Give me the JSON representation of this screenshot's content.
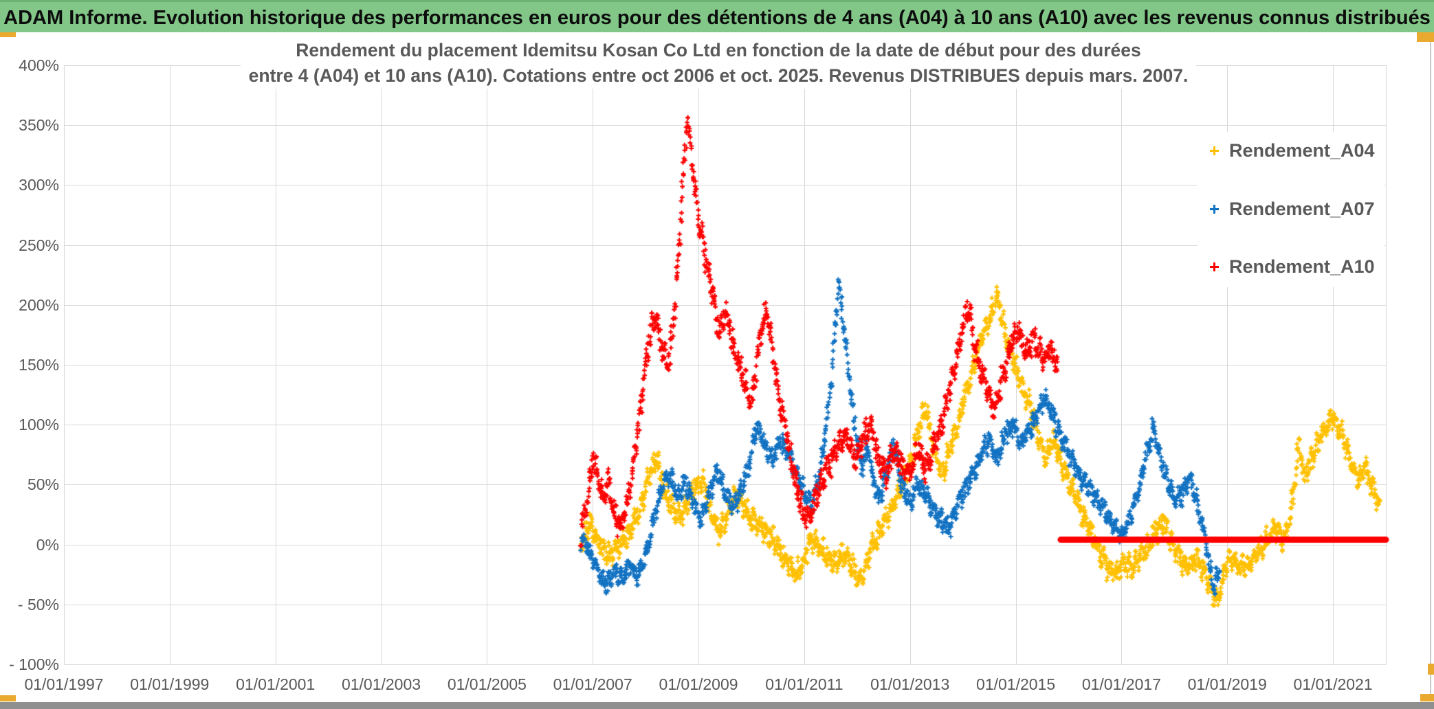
{
  "header": {
    "title": "ADAM Informe. Evolution historique des performances en euros pour des détentions de 4 ans (A04) à 10 ans (A10) avec les revenus connus distribués"
  },
  "chart_title": {
    "line1": "Rendement du placement Idemitsu Kosan Co Ltd en fonction de la date de début pour des durées",
    "line2": "entre 4 (A04) et 10 ans (A10). Cotations entre oct 2006 et oct. 2025. Revenus DISTRIBUES depuis mars. 2007."
  },
  "legend": [
    {
      "label": "Rendement_A04",
      "color": "#FFC000"
    },
    {
      "label": "Rendement_A07",
      "color": "#1272C2"
    },
    {
      "label": "Rendement_A10",
      "color": "#FF0000"
    }
  ],
  "colors": {
    "header_green": "#82C788",
    "accent_gold": "#EAAA30",
    "grid": "#D9D9D9",
    "axis_text": "#595959",
    "series_a04": "#FFC000",
    "series_a07": "#1272C2",
    "series_a10": "#FF0000"
  },
  "chart_data": {
    "type": "scatter",
    "marker": "plus",
    "grid": "on",
    "legend_position": "right-inside",
    "x_axis": {
      "ticks": [
        "01/01/1997",
        "01/01/1999",
        "01/01/2001",
        "01/01/2003",
        "01/01/2005",
        "01/01/2007",
        "01/01/2009",
        "01/01/2011",
        "01/01/2013",
        "01/01/2015",
        "01/01/2017",
        "01/01/2019",
        "01/01/2021"
      ],
      "start_year": 1997,
      "end_year": 2022,
      "tick_interval_years": 2
    },
    "y_axis": {
      "ticks": [
        "400%",
        "350%",
        "300%",
        "250%",
        "200%",
        "150%",
        "100%",
        "50%",
        "0%",
        "- 50%",
        "- 100%"
      ],
      "max": 400,
      "min": -100,
      "step": 50,
      "unit": "%"
    },
    "series": [
      {
        "name": "Rendement_A04",
        "color": "#FFC000",
        "noise": 8,
        "anchors": [
          [
            2006.78,
            2
          ],
          [
            2006.95,
            18
          ],
          [
            2007.1,
            4
          ],
          [
            2007.3,
            -10
          ],
          [
            2007.5,
            -2
          ],
          [
            2007.7,
            10
          ],
          [
            2007.9,
            30
          ],
          [
            2008.1,
            60
          ],
          [
            2008.22,
            73
          ],
          [
            2008.35,
            46
          ],
          [
            2008.5,
            30
          ],
          [
            2008.65,
            22
          ],
          [
            2008.8,
            35
          ],
          [
            2008.95,
            50
          ],
          [
            2009.1,
            52
          ],
          [
            2009.25,
            24
          ],
          [
            2009.4,
            10
          ],
          [
            2009.55,
            25
          ],
          [
            2009.7,
            42
          ],
          [
            2009.85,
            34
          ],
          [
            2010.0,
            22
          ],
          [
            2010.3,
            10
          ],
          [
            2010.5,
            -2
          ],
          [
            2010.7,
            -16
          ],
          [
            2010.85,
            -25
          ],
          [
            2011.0,
            -12
          ],
          [
            2011.15,
            6
          ],
          [
            2011.3,
            -2
          ],
          [
            2011.45,
            -12
          ],
          [
            2011.6,
            -16
          ],
          [
            2011.75,
            -8
          ],
          [
            2011.9,
            -18
          ],
          [
            2012.05,
            -30
          ],
          [
            2012.2,
            -12
          ],
          [
            2012.35,
            4
          ],
          [
            2012.5,
            18
          ],
          [
            2012.65,
            30
          ],
          [
            2012.8,
            45
          ],
          [
            2013.0,
            68
          ],
          [
            2013.15,
            95
          ],
          [
            2013.3,
            115
          ],
          [
            2013.45,
            80
          ],
          [
            2013.6,
            58
          ],
          [
            2013.75,
            80
          ],
          [
            2013.9,
            100
          ],
          [
            2014.05,
            125
          ],
          [
            2014.2,
            150
          ],
          [
            2014.35,
            170
          ],
          [
            2014.5,
            190
          ],
          [
            2014.65,
            207
          ],
          [
            2014.8,
            175
          ],
          [
            2014.95,
            155
          ],
          [
            2015.1,
            135
          ],
          [
            2015.25,
            118
          ],
          [
            2015.4,
            95
          ],
          [
            2015.55,
            72
          ],
          [
            2015.7,
            88
          ],
          [
            2015.85,
            70
          ],
          [
            2016.0,
            52
          ],
          [
            2016.15,
            38
          ],
          [
            2016.3,
            22
          ],
          [
            2016.45,
            8
          ],
          [
            2016.6,
            -8
          ],
          [
            2016.75,
            -20
          ],
          [
            2016.9,
            -25
          ],
          [
            2017.05,
            -15
          ],
          [
            2017.2,
            -18
          ],
          [
            2017.35,
            -10
          ],
          [
            2017.5,
            -2
          ],
          [
            2017.65,
            12
          ],
          [
            2017.8,
            20
          ],
          [
            2017.95,
            2
          ],
          [
            2018.1,
            -12
          ],
          [
            2018.25,
            -20
          ],
          [
            2018.4,
            -12
          ],
          [
            2018.55,
            -22
          ],
          [
            2018.7,
            -38
          ],
          [
            2018.8,
            -47
          ],
          [
            2018.9,
            -30
          ],
          [
            2019.05,
            -12
          ],
          [
            2019.2,
            -16
          ],
          [
            2019.35,
            -20
          ],
          [
            2019.5,
            -10
          ],
          [
            2019.65,
            -3
          ],
          [
            2019.8,
            8
          ],
          [
            2019.95,
            14
          ],
          [
            2020.05,
            0
          ],
          [
            2020.2,
            25
          ],
          [
            2020.3,
            62
          ],
          [
            2020.36,
            88
          ],
          [
            2020.45,
            55
          ],
          [
            2020.6,
            72
          ],
          [
            2020.75,
            88
          ],
          [
            2020.9,
            100
          ],
          [
            2021.0,
            106
          ],
          [
            2021.1,
            98
          ],
          [
            2021.2,
            88
          ],
          [
            2021.3,
            74
          ],
          [
            2021.4,
            62
          ],
          [
            2021.5,
            55
          ],
          [
            2021.6,
            66
          ],
          [
            2021.7,
            52
          ],
          [
            2021.8,
            42
          ],
          [
            2021.88,
            32
          ]
        ]
      },
      {
        "name": "Rendement_A07",
        "color": "#1272C2",
        "noise": 7,
        "anchors": [
          [
            2006.78,
            4
          ],
          [
            2006.95,
            -8
          ],
          [
            2007.1,
            -22
          ],
          [
            2007.25,
            -34
          ],
          [
            2007.4,
            -22
          ],
          [
            2007.55,
            -28
          ],
          [
            2007.7,
            -18
          ],
          [
            2007.85,
            -25
          ],
          [
            2008.0,
            -10
          ],
          [
            2008.15,
            20
          ],
          [
            2008.3,
            48
          ],
          [
            2008.45,
            58
          ],
          [
            2008.6,
            40
          ],
          [
            2008.75,
            52
          ],
          [
            2008.9,
            35
          ],
          [
            2009.05,
            20
          ],
          [
            2009.2,
            42
          ],
          [
            2009.35,
            62
          ],
          [
            2009.5,
            45
          ],
          [
            2009.65,
            30
          ],
          [
            2009.8,
            45
          ],
          [
            2009.95,
            65
          ],
          [
            2010.1,
            100
          ],
          [
            2010.25,
            85
          ],
          [
            2010.4,
            70
          ],
          [
            2010.55,
            88
          ],
          [
            2010.7,
            75
          ],
          [
            2010.85,
            60
          ],
          [
            2011.0,
            42
          ],
          [
            2011.15,
            35
          ],
          [
            2011.3,
            60
          ],
          [
            2011.45,
            110
          ],
          [
            2011.55,
            160
          ],
          [
            2011.65,
            218
          ],
          [
            2011.73,
            185
          ],
          [
            2011.82,
            155
          ],
          [
            2011.9,
            120
          ],
          [
            2012.0,
            85
          ],
          [
            2012.1,
            65
          ],
          [
            2012.2,
            82
          ],
          [
            2012.3,
            55
          ],
          [
            2012.4,
            38
          ],
          [
            2012.55,
            60
          ],
          [
            2012.7,
            85
          ],
          [
            2012.85,
            48
          ],
          [
            2013.0,
            35
          ],
          [
            2013.15,
            50
          ],
          [
            2013.3,
            42
          ],
          [
            2013.45,
            28
          ],
          [
            2013.6,
            20
          ],
          [
            2013.75,
            14
          ],
          [
            2013.9,
            32
          ],
          [
            2014.05,
            48
          ],
          [
            2014.2,
            60
          ],
          [
            2014.35,
            75
          ],
          [
            2014.5,
            88
          ],
          [
            2014.65,
            70
          ],
          [
            2014.8,
            92
          ],
          [
            2014.95,
            100
          ],
          [
            2015.1,
            85
          ],
          [
            2015.25,
            95
          ],
          [
            2015.4,
            108
          ],
          [
            2015.55,
            122
          ],
          [
            2015.7,
            108
          ],
          [
            2015.85,
            92
          ],
          [
            2016.0,
            76
          ],
          [
            2016.2,
            58
          ],
          [
            2016.4,
            46
          ],
          [
            2016.6,
            34
          ],
          [
            2016.8,
            18
          ],
          [
            2017.0,
            6
          ],
          [
            2017.15,
            20
          ],
          [
            2017.3,
            42
          ],
          [
            2017.45,
            70
          ],
          [
            2017.6,
            98
          ],
          [
            2017.7,
            78
          ],
          [
            2017.85,
            55
          ],
          [
            2018.0,
            38
          ],
          [
            2018.15,
            42
          ],
          [
            2018.3,
            55
          ],
          [
            2018.45,
            32
          ],
          [
            2018.55,
            12
          ],
          [
            2018.65,
            -15
          ],
          [
            2018.75,
            -38
          ],
          [
            2018.85,
            -18
          ]
        ]
      },
      {
        "name": "Rendement_A10",
        "color": "#FF0000",
        "noise": 9,
        "anchors": [
          [
            2006.78,
            8
          ],
          [
            2006.9,
            40
          ],
          [
            2007.0,
            72
          ],
          [
            2007.1,
            58
          ],
          [
            2007.2,
            38
          ],
          [
            2007.3,
            55
          ],
          [
            2007.42,
            22
          ],
          [
            2007.52,
            14
          ],
          [
            2007.65,
            35
          ],
          [
            2007.8,
            75
          ],
          [
            2007.95,
            130
          ],
          [
            2008.1,
            180
          ],
          [
            2008.2,
            188
          ],
          [
            2008.32,
            160
          ],
          [
            2008.45,
            152
          ],
          [
            2008.55,
            200
          ],
          [
            2008.65,
            258
          ],
          [
            2008.72,
            310
          ],
          [
            2008.78,
            358
          ],
          [
            2008.85,
            330
          ],
          [
            2008.92,
            300
          ],
          [
            2009.0,
            272
          ],
          [
            2009.1,
            248
          ],
          [
            2009.2,
            225
          ],
          [
            2009.3,
            200
          ],
          [
            2009.4,
            178
          ],
          [
            2009.5,
            195
          ],
          [
            2009.6,
            178
          ],
          [
            2009.7,
            158
          ],
          [
            2009.8,
            145
          ],
          [
            2009.9,
            132
          ],
          [
            2010.0,
            118
          ],
          [
            2010.1,
            150
          ],
          [
            2010.2,
            185
          ],
          [
            2010.3,
            195
          ],
          [
            2010.4,
            160
          ],
          [
            2010.5,
            130
          ],
          [
            2010.6,
            105
          ],
          [
            2010.7,
            85
          ],
          [
            2010.8,
            60
          ],
          [
            2010.9,
            40
          ],
          [
            2011.0,
            25
          ],
          [
            2011.1,
            20
          ],
          [
            2011.2,
            38
          ],
          [
            2011.35,
            55
          ],
          [
            2011.5,
            70
          ],
          [
            2011.65,
            85
          ],
          [
            2011.8,
            92
          ],
          [
            2011.95,
            70
          ],
          [
            2012.1,
            88
          ],
          [
            2012.25,
            100
          ],
          [
            2012.4,
            72
          ],
          [
            2012.55,
            60
          ],
          [
            2012.7,
            80
          ],
          [
            2012.85,
            65
          ],
          [
            2013.0,
            58
          ],
          [
            2013.15,
            80
          ],
          [
            2013.3,
            62
          ],
          [
            2013.45,
            82
          ],
          [
            2013.6,
            100
          ],
          [
            2013.75,
            128
          ],
          [
            2013.9,
            160
          ],
          [
            2014.0,
            180
          ],
          [
            2014.1,
            200
          ],
          [
            2014.2,
            172
          ],
          [
            2014.3,
            152
          ],
          [
            2014.45,
            130
          ],
          [
            2014.6,
            112
          ],
          [
            2014.75,
            140
          ],
          [
            2014.9,
            165
          ],
          [
            2015.05,
            182
          ],
          [
            2015.2,
            160
          ],
          [
            2015.35,
            172
          ],
          [
            2015.5,
            155
          ],
          [
            2015.65,
            162
          ],
          [
            2015.8,
            150
          ]
        ],
        "flat_segment": {
          "from": 2015.85,
          "to": 2022.0,
          "value": 4
        }
      }
    ]
  }
}
